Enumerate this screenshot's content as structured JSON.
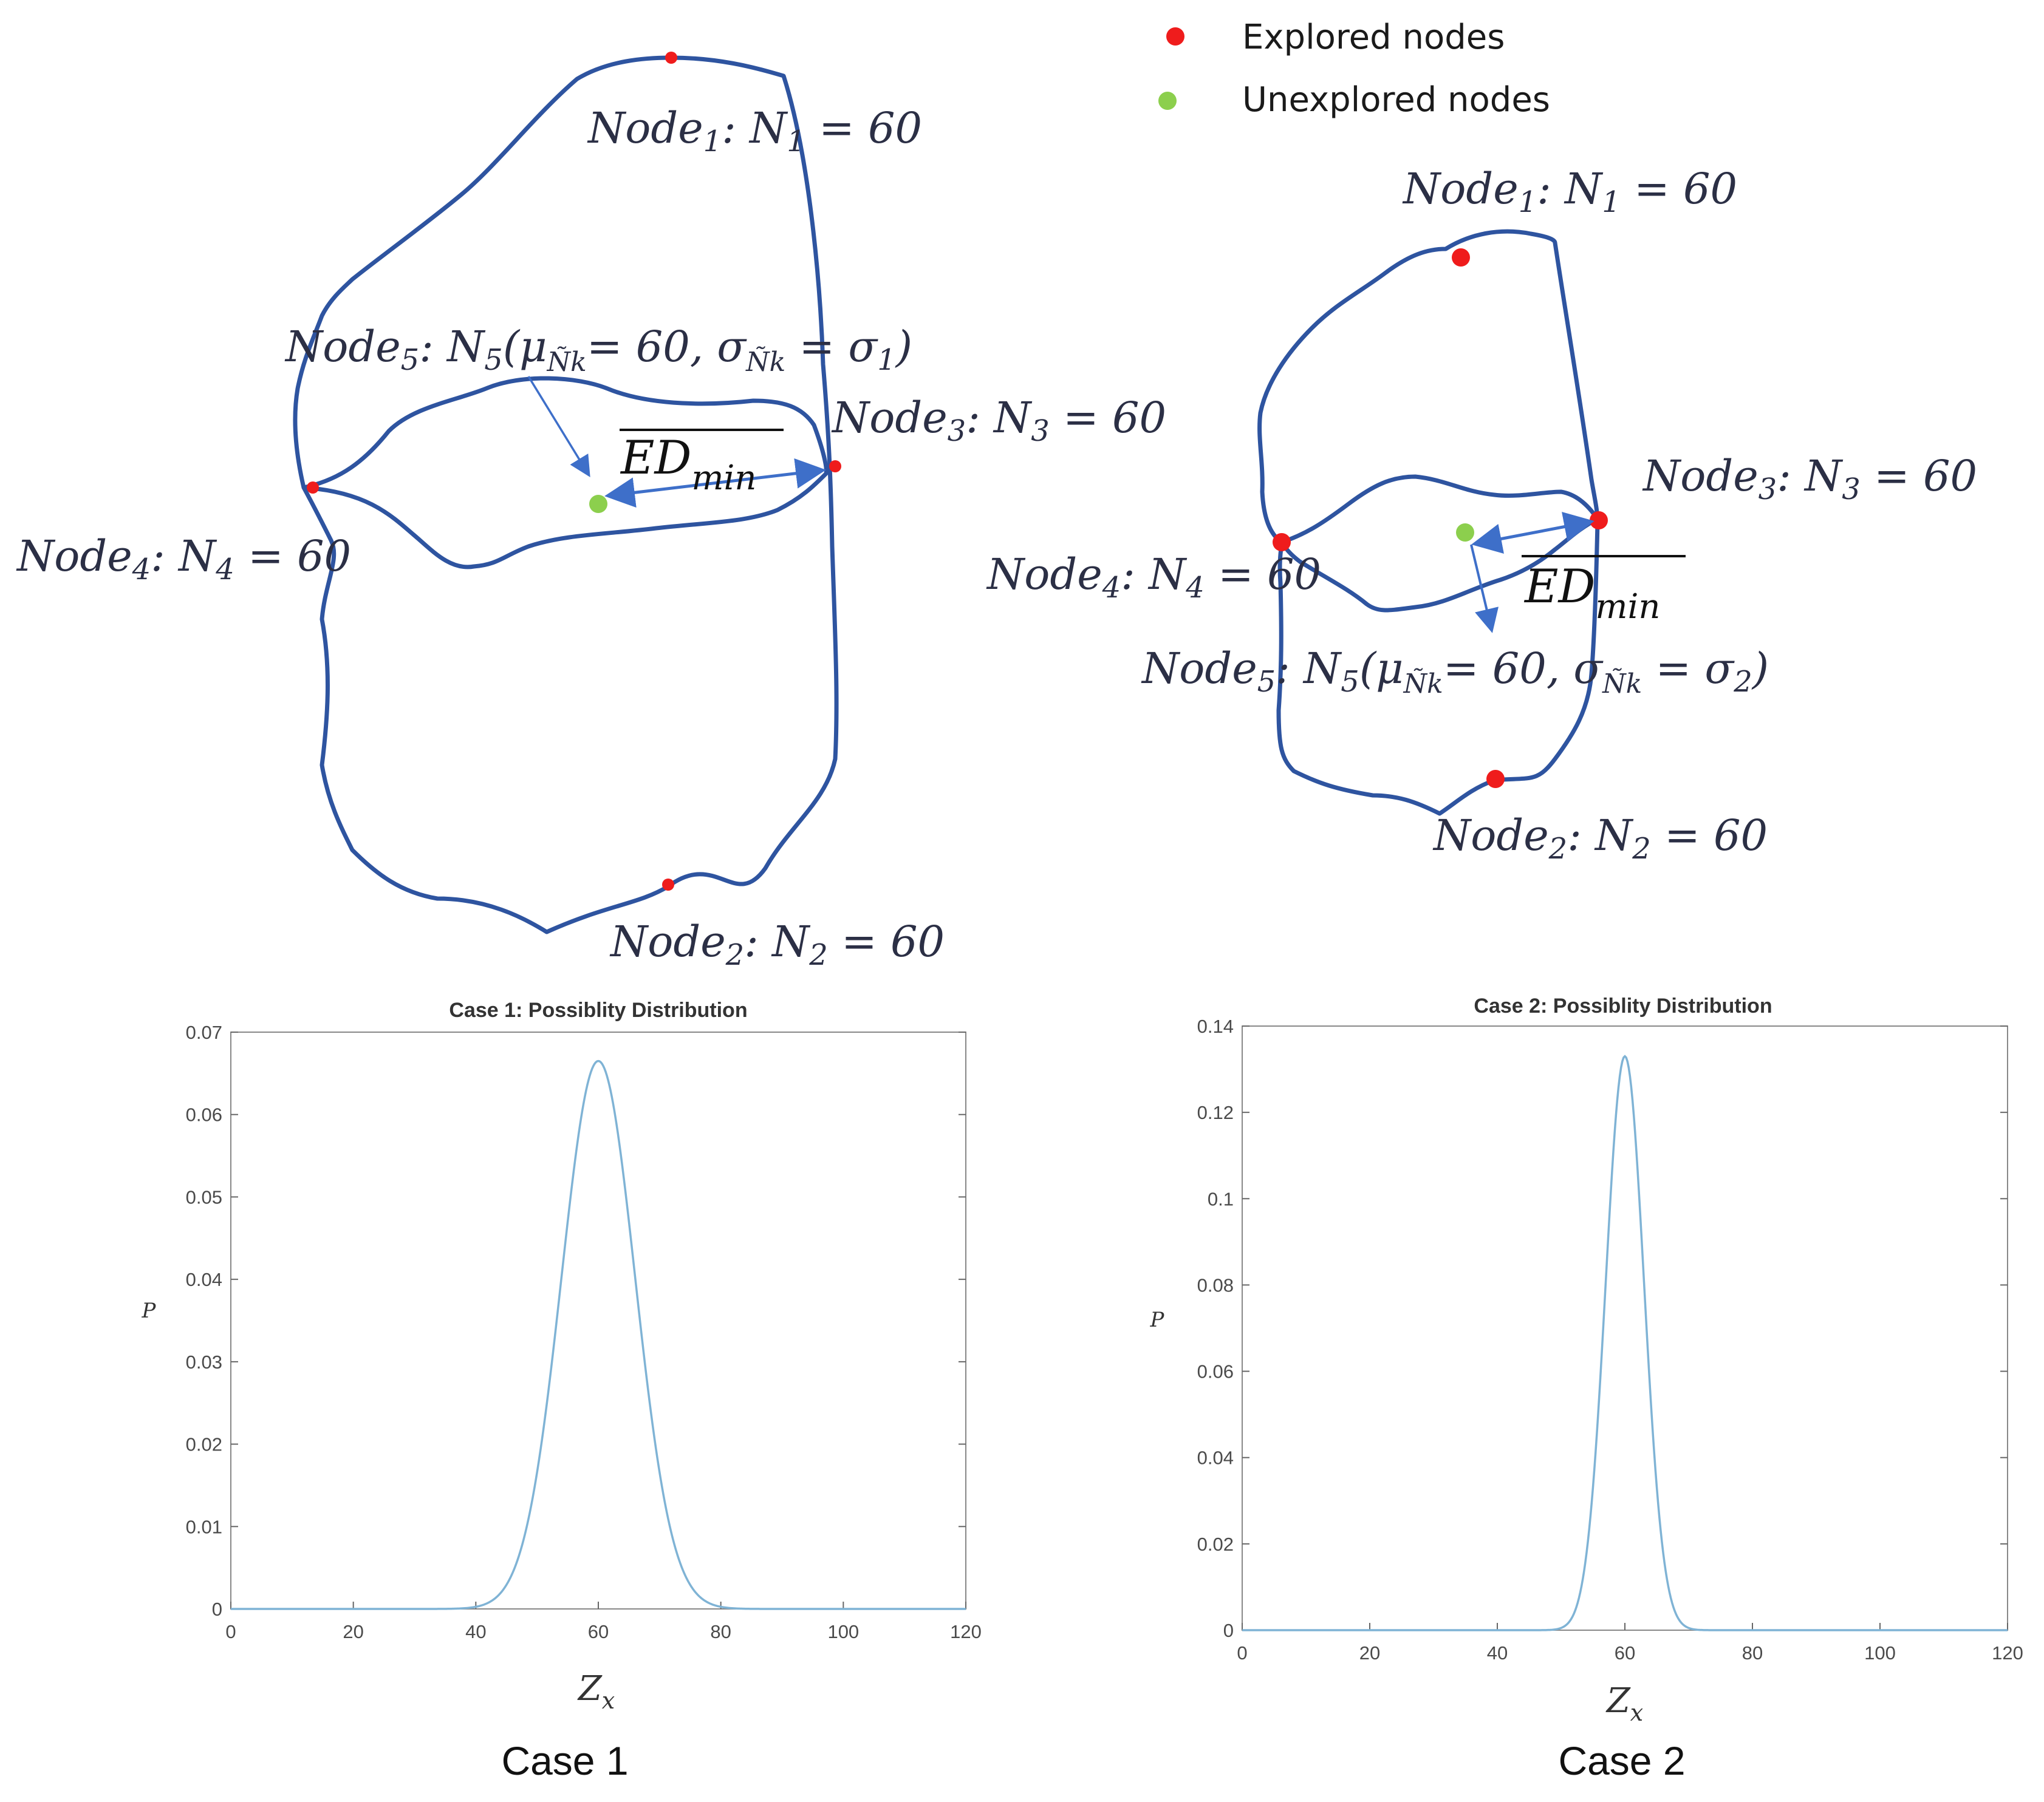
{
  "legend": {
    "explored_label": "Explored nodes",
    "unexplored_label": "Unexplored nodes",
    "explored_color": "#ef1c1c",
    "unexplored_color": "#8ccf4d"
  },
  "diagram_case1": {
    "node1": {
      "name": "Node",
      "sub": "1",
      "rest": ": N",
      "rsub": "1",
      "eq": " = 60"
    },
    "node2": {
      "name": "Node",
      "sub": "2",
      "rest": ": N",
      "rsub": "2",
      "eq": " = 60"
    },
    "node3": {
      "name": "Node",
      "sub": "3",
      "rest": ": N",
      "rsub": "3",
      "eq": " = 60"
    },
    "node4": {
      "name": "Node",
      "sub": "4",
      "rest": ": N",
      "rsub": "4",
      "eq": " = 60"
    },
    "node5": {
      "name": "Node",
      "sub": "5",
      "rest": ": N",
      "rsub": "5",
      "open": "(μ",
      "musub": "Ñk",
      "mueq": "= 60, σ",
      "sigsub": "Ñk",
      "sigeq": " = σ",
      "sigval": "1",
      "close": ")"
    },
    "ed_label": "ED",
    "ed_sub": "min"
  },
  "diagram_case2": {
    "node1": {
      "name": "Node",
      "sub": "1",
      "rest": ": N",
      "rsub": "1",
      "eq": " = 60"
    },
    "node2": {
      "name": "Node",
      "sub": "2",
      "rest": ": N",
      "rsub": "2",
      "eq": " = 60"
    },
    "node3": {
      "name": "Node",
      "sub": "3",
      "rest": ": N",
      "rsub": "3",
      "eq": " = 60"
    },
    "node4": {
      "name": "Node",
      "sub": "4",
      "rest": ": N",
      "rsub": "4",
      "eq": " = 60"
    },
    "node5": {
      "name": "Node",
      "sub": "5",
      "rest": ": N",
      "rsub": "5",
      "open": "(μ",
      "musub": "Ñk",
      "mueq": "= 60, σ",
      "sigsub": "Ñk",
      "sigeq": " =  σ",
      "sigval": "2",
      "close": ")"
    },
    "ed_label": "ED",
    "ed_sub": "min"
  },
  "captions": {
    "case1": "Case 1",
    "case2": "Case 2"
  },
  "chart_data": [
    {
      "type": "line",
      "title": "Case 1: Possiblity Distribution",
      "xlabel": "Z",
      "xlabel_sub": "x",
      "ylabel": "P",
      "xlim": [
        0,
        120
      ],
      "ylim": [
        0,
        0.07
      ],
      "xticks": [
        "0",
        "20",
        "40",
        "60",
        "80",
        "100",
        "120"
      ],
      "yticks": [
        "0",
        "0.01",
        "0.02",
        "0.03",
        "0.04",
        "0.05",
        "0.06",
        "0.07"
      ],
      "series": [
        {
          "mean": 60,
          "sigma": 6,
          "peak": 0.0665,
          "color": "#7fb3d5"
        }
      ]
    },
    {
      "type": "line",
      "title": "Case 2: Possiblity Distribution",
      "xlabel": "Z",
      "xlabel_sub": "x",
      "ylabel": "P",
      "xlim": [
        0,
        120
      ],
      "ylim": [
        0,
        0.14
      ],
      "xticks": [
        "0",
        "20",
        "40",
        "60",
        "80",
        "100",
        "120"
      ],
      "yticks": [
        "0",
        "0.02",
        "0.04",
        "0.06",
        "0.08",
        "0.1",
        "0.12",
        "0.14"
      ],
      "series": [
        {
          "mean": 60,
          "sigma": 3,
          "peak": 0.133,
          "color": "#7fb3d5"
        }
      ]
    }
  ]
}
